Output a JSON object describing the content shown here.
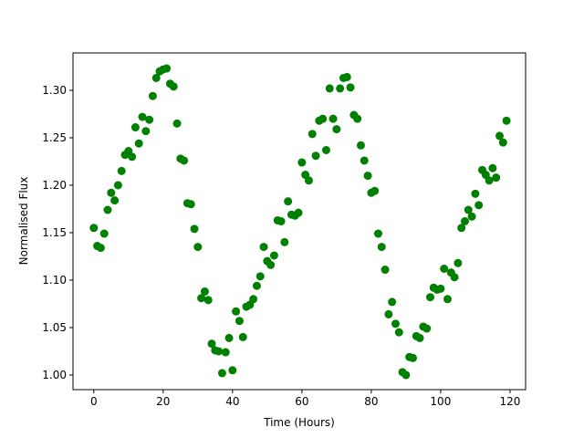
{
  "chart_data": {
    "type": "scatter",
    "xlabel": "Time (Hours)",
    "ylabel": "Normalised Flux",
    "color": "#008000",
    "x": [
      0,
      1,
      2,
      3,
      4,
      5,
      6,
      7,
      8,
      9,
      10,
      11,
      12,
      13,
      14,
      15,
      16,
      17,
      18,
      19,
      20,
      21,
      22,
      23,
      24,
      25,
      26,
      27,
      28,
      29,
      30,
      31,
      32,
      33,
      34,
      35,
      36,
      37,
      38,
      39,
      40,
      41,
      42,
      43,
      44,
      45,
      46,
      47,
      48,
      49,
      50,
      51,
      52,
      53,
      54,
      55,
      56,
      57,
      58,
      59,
      60,
      61,
      62,
      63,
      64,
      65,
      66,
      67,
      68,
      69,
      70,
      71,
      72,
      73,
      74,
      75,
      76,
      77,
      78,
      79,
      80,
      81,
      82,
      83,
      84,
      85,
      86,
      87,
      88,
      89,
      90,
      91,
      92,
      93,
      94,
      95,
      96,
      97,
      98,
      99,
      100,
      101,
      102,
      103,
      104,
      105,
      106,
      107,
      108,
      109,
      110,
      111,
      112,
      113,
      114,
      115,
      116,
      117,
      118,
      119
    ],
    "values": [
      1.155,
      1.136,
      1.134,
      1.149,
      1.174,
      1.192,
      1.184,
      1.2,
      1.215,
      1.232,
      1.236,
      1.23,
      1.261,
      1.244,
      1.272,
      1.257,
      1.269,
      1.294,
      1.313,
      1.32,
      1.322,
      1.323,
      1.307,
      1.304,
      1.265,
      1.228,
      1.226,
      1.181,
      1.18,
      1.154,
      1.135,
      1.081,
      1.088,
      1.079,
      1.033,
      1.026,
      1.025,
      1.002,
      1.024,
      1.039,
      1.005,
      1.067,
      1.057,
      1.04,
      1.072,
      1.074,
      1.08,
      1.094,
      1.104,
      1.135,
      1.12,
      1.116,
      1.126,
      1.163,
      1.162,
      1.14,
      1.183,
      1.169,
      1.168,
      1.171,
      1.224,
      1.211,
      1.205,
      1.254,
      1.231,
      1.268,
      1.27,
      1.237,
      1.302,
      1.27,
      1.259,
      1.302,
      1.313,
      1.314,
      1.303,
      1.274,
      1.27,
      1.242,
      1.226,
      1.21,
      1.192,
      1.194,
      1.149,
      1.135,
      1.111,
      1.064,
      1.077,
      1.054,
      1.045,
      1.003,
      1.0,
      1.019,
      1.018,
      1.041,
      1.039,
      1.051,
      1.049,
      1.082,
      1.092,
      1.09,
      1.091,
      1.112,
      1.08,
      1.108,
      1.103,
      1.118,
      1.155,
      1.162,
      1.174,
      1.167,
      1.191,
      1.179,
      1.216,
      1.211,
      1.205,
      1.218,
      1.208,
      1.252,
      1.245,
      1.268
    ],
    "xlim": [
      -6,
      124.5
    ],
    "ylim": [
      0.9846,
      1.3394
    ],
    "xticks": [
      0,
      20,
      40,
      60,
      80,
      100,
      120
    ],
    "yticks": [
      {
        "value": 1,
        "label": "1.00"
      },
      1.05,
      {
        "value": 1.1,
        "label": "1.10"
      },
      1.15,
      {
        "value": 1.2,
        "label": "1.20"
      },
      1.25,
      {
        "value": 1.3,
        "label": "1.30"
      }
    ]
  }
}
